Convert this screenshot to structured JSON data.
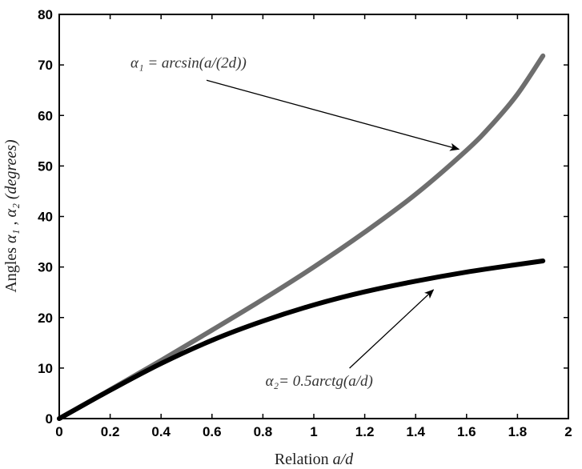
{
  "chart_data": {
    "type": "line",
    "xlabel": {
      "prefix": "Relation ",
      "var": "a/d"
    },
    "ylabel": {
      "prefix": "Angles ",
      "var": "α₁ , α₂ (degrees)"
    },
    "xlim": [
      0,
      2
    ],
    "ylim": [
      0,
      80
    ],
    "x_ticks": [
      0,
      0.2,
      0.4,
      0.6,
      0.8,
      1,
      1.2,
      1.4,
      1.6,
      1.8,
      2
    ],
    "x_tick_labels": [
      "0",
      "0.2",
      "0.4",
      "0.6",
      "0.8",
      "1",
      "1.2",
      "1.4",
      "1.6",
      "1.8",
      "2"
    ],
    "y_ticks": [
      0,
      10,
      20,
      30,
      40,
      50,
      60,
      70,
      80
    ],
    "y_tick_labels": [
      "0",
      "10",
      "20",
      "30",
      "40",
      "50",
      "60",
      "70",
      "80"
    ],
    "grid": false,
    "series": [
      {
        "color": "#6e6e6e",
        "x": [
          0,
          0.2,
          0.4,
          0.6,
          0.8,
          1.0,
          1.2,
          1.4,
          1.6,
          1.7,
          1.8,
          1.9
        ],
        "values": [
          0,
          5.7,
          11.5,
          17.5,
          23.6,
          30.0,
          36.9,
          44.4,
          53.1,
          58.2,
          64.2,
          71.8
        ]
      },
      {
        "color": "#000000",
        "x": [
          0,
          0.2,
          0.4,
          0.6,
          0.8,
          1.0,
          1.2,
          1.4,
          1.6,
          1.8,
          1.9
        ],
        "values": [
          0,
          5.6,
          10.9,
          15.5,
          19.3,
          22.5,
          25.1,
          27.2,
          29.0,
          30.5,
          31.2
        ]
      }
    ],
    "annotations": [
      {
        "text": "α₁ = arcsin(a/(2d))",
        "x_text": 0.28,
        "y_text": 69.5,
        "x_arrow": 1.57,
        "y_arrow": 53.3
      },
      {
        "text": "α₂= 0.5arctg(a/d)",
        "x_text": 0.81,
        "y_text": 6.5,
        "x_arrow": 1.47,
        "y_arrow": 25.5
      }
    ]
  }
}
